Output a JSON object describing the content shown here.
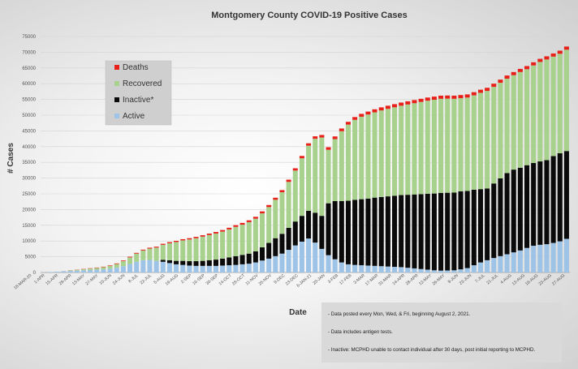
{
  "chart_data": {
    "type": "bar",
    "stacked": true,
    "title": "Montgomery County COVID-19 Positive Cases",
    "xlabel": "Date",
    "ylabel": "# Cases",
    "ylim": [
      0,
      75000
    ],
    "y_ticks": [
      0,
      5000,
      10000,
      15000,
      20000,
      25000,
      30000,
      35000,
      40000,
      45000,
      50000,
      55000,
      60000,
      65000,
      70000,
      75000
    ],
    "legend_position": "upper-left",
    "x_tick_labels": [
      "18-MAR-20",
      "1-APR",
      "15-APR",
      "29-APR",
      "13-MAY",
      "27-MAY",
      "10-JUN",
      "24-JUN",
      "8-JUL",
      "22-JUL",
      "5-AUG",
      "19-AUG",
      "2-SEP",
      "16-SEP",
      "30-SEP",
      "14-OCT",
      "28-OCT",
      "11-NOV",
      "25-NOV",
      "9-DEC",
      "23-DEC",
      "6-JAN-21",
      "20-JAN",
      "3-FEB",
      "17-FEB",
      "3-MAR",
      "17-MAR",
      "31-MAR",
      "14-APR",
      "28-APR",
      "12-MAY",
      "26-MAY",
      "9-JUN",
      "23-JUN",
      "7-JUL",
      "21-JUL",
      "4-AUG",
      "13-AUG",
      "18-AUG",
      "23-AUG",
      "27-AUG"
    ],
    "colors": {
      "Active": "#9dc3e6",
      "Inactive*": "#0a0a0a",
      "Recovered": "#a9d18e",
      "Deaths": "#e8201a"
    },
    "legend": [
      {
        "name": "Deaths",
        "color": "#e8201a"
      },
      {
        "name": "Recovered",
        "color": "#a9d18e"
      },
      {
        "name": "Inactive*",
        "color": "#0a0a0a"
      },
      {
        "name": "Active",
        "color": "#9dc3e6"
      }
    ],
    "stack_order": [
      "Active",
      "Inactive*",
      "Recovered",
      "Deaths"
    ],
    "series": [
      {
        "name": "Active",
        "values": [
          50,
          150,
          250,
          400,
          500,
          600,
          700,
          800,
          900,
          1000,
          1200,
          1500,
          2000,
          2700,
          3400,
          3900,
          4000,
          3700,
          3400,
          3000,
          2600,
          2400,
          2200,
          2100,
          2100,
          2100,
          2100,
          2200,
          2300,
          2400,
          2600,
          2800,
          3200,
          3800,
          4400,
          5200,
          6000,
          7200,
          8600,
          9800,
          10800,
          9500,
          7500,
          5500,
          4200,
          3200,
          2600,
          2400,
          2300,
          2200,
          2100,
          2000,
          1900,
          1800,
          1700,
          1500,
          1300,
          1100,
          900,
          700,
          600,
          650,
          700,
          1000,
          1400,
          2300,
          3200,
          3900,
          4600,
          5200,
          5800,
          6400,
          7000,
          7800,
          8500,
          8800,
          9000,
          9400,
          9900,
          10700
        ]
      },
      {
        "name": "Inactive*",
        "values": [
          0,
          0,
          0,
          0,
          0,
          0,
          0,
          0,
          0,
          0,
          0,
          0,
          0,
          0,
          0,
          0,
          0,
          0,
          600,
          900,
          1100,
          1300,
          1400,
          1500,
          1600,
          1800,
          2000,
          2200,
          2500,
          2800,
          3000,
          3200,
          3500,
          4200,
          5000,
          5700,
          6300,
          7000,
          7600,
          8200,
          8800,
          9500,
          10500,
          16500,
          18500,
          19500,
          20200,
          20700,
          21000,
          21300,
          21700,
          22000,
          22300,
          22600,
          22900,
          23200,
          23500,
          23800,
          24100,
          24400,
          24700,
          24700,
          24700,
          24800,
          24500,
          24000,
          23300,
          22800,
          23700,
          24700,
          25800,
          26300,
          26300,
          26300,
          26300,
          26500,
          26700,
          27600,
          28000,
          27900
        ]
      },
      {
        "name": "Recovered",
        "values": [
          0,
          0,
          0,
          0,
          150,
          250,
          350,
          450,
          550,
          700,
          900,
          1200,
          1600,
          2100,
          2600,
          3100,
          3600,
          4200,
          4800,
          5400,
          6000,
          6500,
          6900,
          7300,
          7700,
          8000,
          8300,
          8600,
          8900,
          9300,
          9600,
          10000,
          10400,
          10800,
          11400,
          12200,
          13200,
          14600,
          16200,
          18300,
          20700,
          23500,
          24900,
          17000,
          19700,
          22200,
          24200,
          25400,
          26200,
          26700,
          27100,
          27500,
          27800,
          28100,
          28400,
          28700,
          29000,
          29300,
          29600,
          29800,
          29900,
          29900,
          29800,
          29600,
          29700,
          30000,
          30600,
          31000,
          30700,
          30400,
          30000,
          30000,
          30400,
          30500,
          31000,
          31600,
          32000,
          31600,
          31600,
          32200
        ]
      },
      {
        "name": "Deaths",
        "values": [
          0,
          0,
          0,
          20,
          40,
          60,
          80,
          100,
          120,
          140,
          160,
          180,
          200,
          220,
          240,
          260,
          280,
          300,
          320,
          340,
          360,
          380,
          400,
          420,
          440,
          460,
          480,
          500,
          520,
          540,
          560,
          580,
          600,
          620,
          640,
          660,
          680,
          700,
          720,
          740,
          760,
          780,
          800,
          820,
          840,
          860,
          880,
          900,
          920,
          940,
          960,
          980,
          1000,
          1000,
          1000,
          1000,
          1000,
          1000,
          1000,
          1000,
          1000,
          1000,
          1000,
          1000,
          1000,
          1000,
          1000,
          1000,
          1000,
          1000,
          1000,
          1000,
          1000,
          1000,
          1000,
          1000,
          1000,
          1000,
          1000,
          1000
        ]
      }
    ]
  },
  "notes": [
    "- Data posted every Mon, Wed, & Fri, beginning August 2, 2021.",
    "- Data includes antigen tests.",
    "- Inactive: MCPHD unable to contact individual after 30 days, post initial reporting to MCPHD."
  ]
}
